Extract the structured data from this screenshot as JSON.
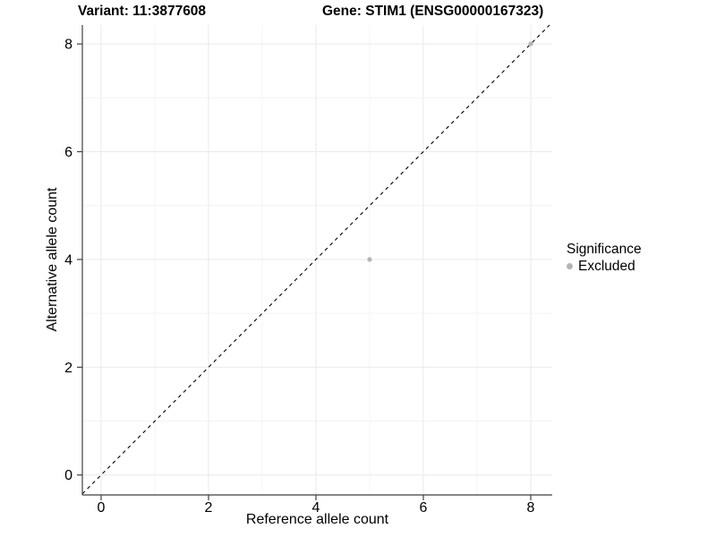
{
  "header": {
    "title_left": "Variant: 11:3877608",
    "title_right": "Gene: STIM1 (ENSG00000167323)"
  },
  "legend": {
    "title": "Significance",
    "items": [
      {
        "label": "Excluded",
        "icon": "dot-icon",
        "color": "#b5b5b5"
      }
    ]
  },
  "chart_data": {
    "type": "scatter",
    "title_left": "Variant: 11:3877608",
    "title_right": "Gene: STIM1 (ENSG00000167323)",
    "xlabel": "Reference allele count",
    "ylabel": "Alternative allele count",
    "xlim": [
      -0.35,
      8.4
    ],
    "ylim": [
      -0.37,
      8.35
    ],
    "xticks": [
      0,
      2,
      4,
      6,
      8
    ],
    "yticks": [
      0,
      2,
      4,
      6,
      8
    ],
    "minor_xticks": [
      1,
      3,
      5,
      7
    ],
    "minor_yticks": [
      1,
      3,
      5,
      7
    ],
    "grid": true,
    "legend_position": "right",
    "series": [
      {
        "name": "Excluded",
        "color": "#b5b5b5",
        "points": [
          {
            "x": 5,
            "y": 4
          },
          {
            "x": 8,
            "y": 8
          }
        ]
      }
    ],
    "reference_line": {
      "type": "identity",
      "slope": 1,
      "intercept": 0,
      "style": "dashed",
      "color": "#000000"
    }
  },
  "colors": {
    "background": "#ffffff",
    "grid_major": "#e9e9e9",
    "grid_minor": "#f4f4f4",
    "axis": "#3f3f3f",
    "text": "#000000",
    "point": "#b5b5b5"
  }
}
